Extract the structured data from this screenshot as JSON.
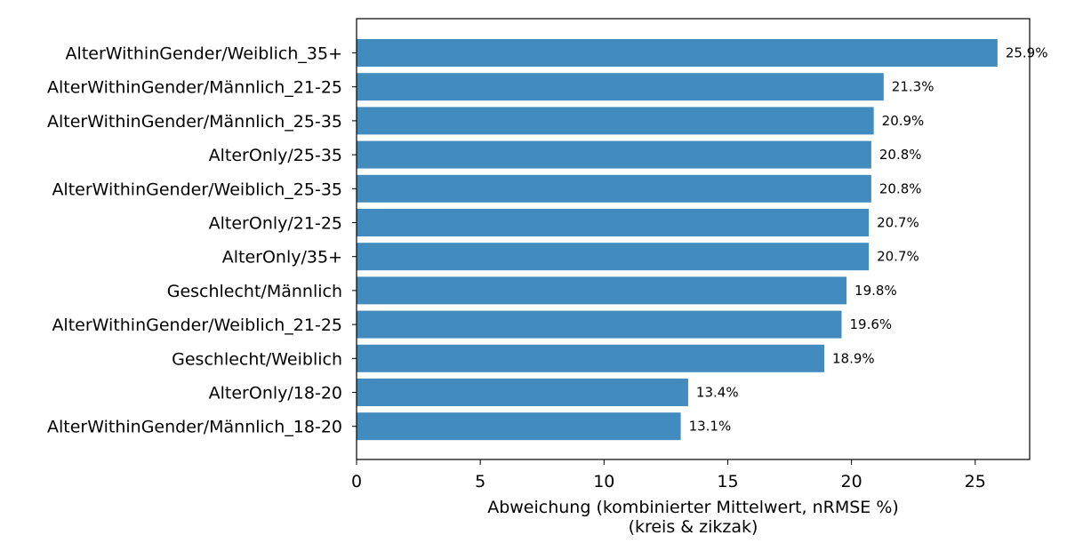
{
  "chart_data": {
    "type": "bar",
    "orientation": "horizontal",
    "categories": [
      "AlterWithinGender/Weiblich_35+",
      "AlterWithinGender/Männlich_21-25",
      "AlterWithinGender/Männlich_25-35",
      "AlterOnly/25-35",
      "AlterWithinGender/Weiblich_25-35",
      "AlterOnly/21-25",
      "AlterOnly/35+",
      "Geschlecht/Männlich",
      "AlterWithinGender/Weiblich_21-25",
      "Geschlecht/Weiblich",
      "AlterOnly/18-20",
      "AlterWithinGender/Männlich_18-20"
    ],
    "values": [
      25.9,
      21.3,
      20.9,
      20.8,
      20.8,
      20.7,
      20.7,
      19.8,
      19.6,
      18.9,
      13.4,
      13.1
    ],
    "value_labels": [
      "25.9%",
      "21.3%",
      "20.9%",
      "20.8%",
      "20.8%",
      "20.7%",
      "20.7%",
      "19.8%",
      "19.6%",
      "18.9%",
      "13.4%",
      "13.1%"
    ],
    "xlabel_line1": "Abweichung (kombinierter Mittelwert, nRMSE %)",
    "xlabel_line2": "(kreis & zikzak)",
    "xlim": [
      0,
      27.2
    ],
    "xticks": [
      0,
      5,
      10,
      15,
      20,
      25
    ],
    "grid": false,
    "bar_color": "#428bbf"
  }
}
